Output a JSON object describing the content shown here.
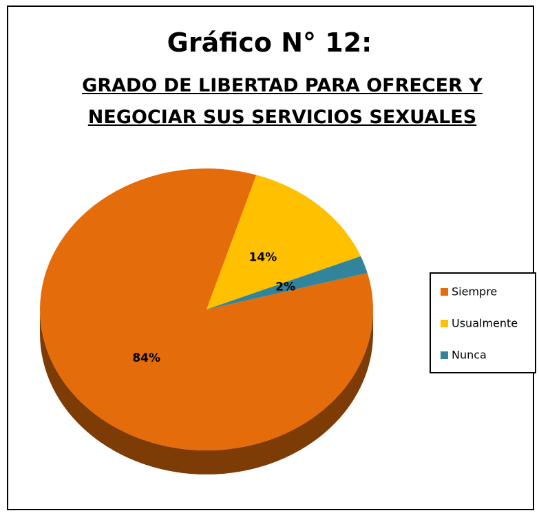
{
  "chart_data": {
    "type": "pie",
    "title": "Gráfico N° 12:",
    "subtitle": "GRADO DE LIBERTAD PARA OFRECER Y NEGOCIAR SUS SERVICIOS SEXUALES",
    "categories": [
      "Siempre",
      "Usualmente",
      "Nunca"
    ],
    "values": [
      84,
      14,
      2
    ],
    "value_labels": [
      "84%",
      "14%",
      "2%"
    ],
    "colors": [
      "#E46C0A",
      "#FFC000",
      "#31849B"
    ],
    "legend": "right"
  }
}
